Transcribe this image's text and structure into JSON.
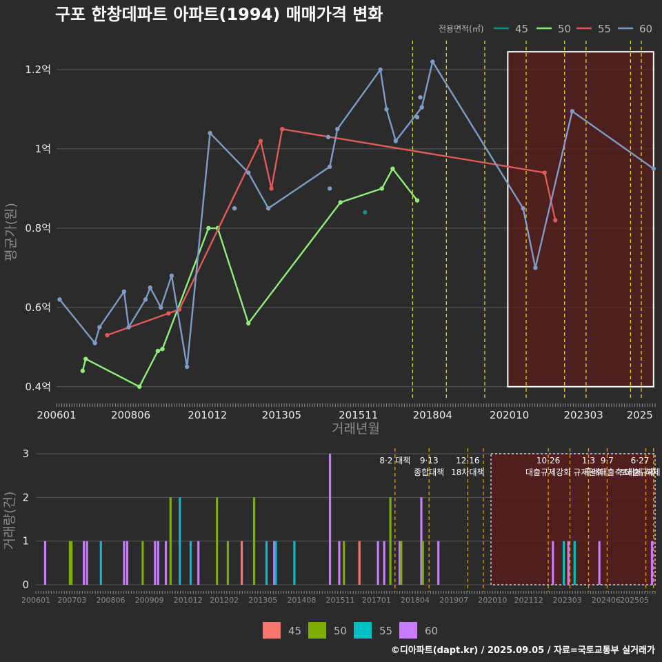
{
  "title": "구포 한창데파트 아파트(1994) 매매가격 변화",
  "credit": "©디아파트(dapt.kr) / 2025.09.05 / 자료=국토교통부 실거래가",
  "colors": {
    "background": "#2b2b2b",
    "grid": "#5a5a5a",
    "s45": "#1f8a8a",
    "s50": "#90ee7a",
    "s55": "#e05a5a",
    "s60": "#7f9cc6",
    "vline": "#e8d800",
    "vline_bottom": "#e6a100",
    "box_fill": "#5a1c1c",
    "b45": "#f8766d",
    "b50": "#7cae00",
    "b55": "#00bfc4",
    "b60": "#c77cff"
  },
  "chart_data": [
    {
      "type": "line",
      "title": "구포 한창데파트 아파트(1994) 매매가격 변화",
      "xlabel": "거래년월",
      "ylabel": "평균가(원)",
      "x_ticks": [
        "200601",
        "200806",
        "201012",
        "201305",
        "201511",
        "201804",
        "202010",
        "202303",
        "2025"
      ],
      "y_ticks": [
        {
          "value": 0.4,
          "label": "0.4억"
        },
        {
          "value": 0.6,
          "label": "0.6억"
        },
        {
          "value": 0.8,
          "label": "0.8억"
        },
        {
          "value": 1.0,
          "label": "1억"
        },
        {
          "value": 1.2,
          "label": "1.2억"
        }
      ],
      "ylim": [
        0.37,
        1.28
      ],
      "xlim": [
        2006.0,
        2025.5
      ],
      "grid": true,
      "legend": {
        "title": "전용면적(㎡)",
        "position": "top-right",
        "items": [
          "45",
          "50",
          "55",
          "60"
        ]
      },
      "series": [
        {
          "name": "45",
          "color_key": "s45",
          "line": false,
          "points": [
            [
              2016.05,
              0.84
            ]
          ]
        },
        {
          "name": "50",
          "color_key": "s50",
          "line": true,
          "points": [
            [
              2006.85,
              0.44
            ],
            [
              2006.95,
              0.47
            ],
            [
              2008.7,
              0.4
            ],
            [
              2009.3,
              0.49
            ],
            [
              2009.45,
              0.495
            ],
            [
              2010.95,
              0.8
            ],
            [
              2011.25,
              0.8
            ],
            [
              2012.25,
              0.56
            ],
            [
              2015.25,
              0.865
            ],
            [
              2016.6,
              0.9
            ],
            [
              2016.95,
              0.95
            ],
            [
              2017.75,
              0.87
            ]
          ]
        },
        {
          "name": "55",
          "color_key": "s55",
          "line": true,
          "points": [
            [
              2007.65,
              0.53
            ],
            [
              2009.65,
              0.585
            ],
            [
              2010.0,
              0.595
            ],
            [
              2012.65,
              1.02
            ],
            [
              2013.0,
              0.9
            ],
            [
              2013.35,
              1.05
            ],
            [
              2021.9,
              0.94
            ],
            [
              2022.25,
              0.82
            ]
          ]
        },
        {
          "name": "60",
          "color_key": "s60",
          "line": true,
          "points": [
            [
              2006.1,
              0.62
            ],
            [
              2007.25,
              0.51
            ],
            [
              2007.4,
              0.55
            ],
            [
              2008.2,
              0.64
            ],
            [
              2008.35,
              0.55
            ],
            [
              2008.9,
              0.62
            ],
            [
              2009.05,
              0.65
            ],
            [
              2009.4,
              0.6
            ],
            [
              2009.75,
              0.68
            ],
            [
              2010.25,
              0.45
            ],
            [
              2011.0,
              1.04
            ],
            [
              2012.25,
              0.94
            ],
            [
              2012.9,
              0.85
            ],
            [
              2014.9,
              0.955
            ],
            [
              2015.15,
              1.05
            ],
            [
              2016.55,
              1.2
            ],
            [
              2016.75,
              1.1
            ],
            [
              2017.05,
              1.02
            ],
            [
              2017.9,
              1.105
            ],
            [
              2018.25,
              1.22
            ],
            [
              2021.2,
              0.85
            ],
            [
              2021.6,
              0.7
            ],
            [
              2022.8,
              1.095
            ],
            [
              2025.45,
              0.95
            ]
          ]
        },
        {
          "name": "60",
          "color_key": "s60",
          "line": false,
          "points": [
            [
              2011.8,
              0.85
            ],
            [
              2014.85,
              1.03
            ],
            [
              2014.9,
              0.9
            ],
            [
              2017.75,
              1.08
            ],
            [
              2017.85,
              1.13
            ]
          ]
        }
      ],
      "policy_lines": [
        2017.6,
        2018.7,
        2019.95,
        2021.3,
        2022.55,
        2023.25,
        2024.7,
        2025.05
      ],
      "highlight_box": [
        2020.7,
        2025.45,
        0.4,
        1.245
      ]
    },
    {
      "type": "bar",
      "ylabel": "거래량(건)",
      "x_ticks": [
        "200601",
        "200703",
        "200806",
        "200909",
        "201012",
        "201202",
        "201305",
        "201408",
        "201511",
        "201701",
        "201804",
        "201907",
        "202010",
        "202112",
        "202303",
        "202406",
        "202505"
      ],
      "y_ticks": [
        0,
        1,
        2,
        3
      ],
      "ylim": [
        0,
        3
      ],
      "legend": {
        "position": "bottom",
        "items": [
          "45",
          "50",
          "55",
          "60"
        ]
      },
      "bars": [
        {
          "x": 2006.3,
          "series": "60",
          "value": 1
        },
        {
          "x": 2007.1,
          "series": "50",
          "value": 1
        },
        {
          "x": 2007.15,
          "series": "50",
          "value": 1
        },
        {
          "x": 2007.55,
          "series": "60",
          "value": 1
        },
        {
          "x": 2007.65,
          "series": "60",
          "value": 1
        },
        {
          "x": 2008.1,
          "series": "55",
          "value": 1
        },
        {
          "x": 2008.85,
          "series": "60",
          "value": 1
        },
        {
          "x": 2008.95,
          "series": "60",
          "value": 1
        },
        {
          "x": 2009.45,
          "series": "50",
          "value": 1
        },
        {
          "x": 2009.85,
          "series": "60",
          "value": 1
        },
        {
          "x": 2009.95,
          "series": "60",
          "value": 1
        },
        {
          "x": 2010.2,
          "series": "60",
          "value": 1
        },
        {
          "x": 2010.35,
          "series": "50",
          "value": 2
        },
        {
          "x": 2010.65,
          "series": "55",
          "value": 2
        },
        {
          "x": 2011.0,
          "series": "55",
          "value": 1
        },
        {
          "x": 2011.25,
          "series": "60",
          "value": 1
        },
        {
          "x": 2011.85,
          "series": "50",
          "value": 2
        },
        {
          "x": 2012.2,
          "series": "50",
          "value": 1
        },
        {
          "x": 2012.65,
          "series": "45",
          "value": 1
        },
        {
          "x": 2013.05,
          "series": "50",
          "value": 2
        },
        {
          "x": 2013.45,
          "series": "55",
          "value": 1
        },
        {
          "x": 2013.7,
          "series": "60",
          "value": 1
        },
        {
          "x": 2013.75,
          "series": "55",
          "value": 1
        },
        {
          "x": 2014.35,
          "series": "55",
          "value": 1
        },
        {
          "x": 2015.5,
          "series": "60",
          "value": 3
        },
        {
          "x": 2015.8,
          "series": "60",
          "value": 1
        },
        {
          "x": 2015.95,
          "series": "50",
          "value": 1
        },
        {
          "x": 2016.45,
          "series": "45",
          "value": 1
        },
        {
          "x": 2017.05,
          "series": "60",
          "value": 1
        },
        {
          "x": 2017.25,
          "series": "60",
          "value": 1
        },
        {
          "x": 2017.45,
          "series": "50",
          "value": 2
        },
        {
          "x": 2017.75,
          "series": "60",
          "value": 1
        },
        {
          "x": 2017.8,
          "series": "50",
          "value": 1
        },
        {
          "x": 2018.45,
          "series": "60",
          "value": 2
        },
        {
          "x": 2018.5,
          "series": "50",
          "value": 1
        },
        {
          "x": 2019.0,
          "series": "60",
          "value": 1
        },
        {
          "x": 2022.7,
          "series": "60",
          "value": 1
        },
        {
          "x": 2023.05,
          "series": "55",
          "value": 1
        },
        {
          "x": 2023.2,
          "series": "60",
          "value": 1
        },
        {
          "x": 2023.4,
          "series": "55",
          "value": 1
        },
        {
          "x": 2024.2,
          "series": "60",
          "value": 1
        },
        {
          "x": 2025.9,
          "series": "60",
          "value": 1
        }
      ],
      "policy_lines": [
        2017.6,
        2018.7,
        2019.95,
        2020.45,
        2022.55,
        2023.25,
        2023.85,
        2024.45,
        2025.7,
        2025.95
      ],
      "highlight_box": [
        2020.7,
        2026.0,
        0,
        3
      ],
      "annotations": [
        {
          "x": 2017.6,
          "lines": [
            "8·2 대책"
          ]
        },
        {
          "x": 2018.7,
          "lines": [
            "9·13",
            "종합대책"
          ]
        },
        {
          "x": 2019.95,
          "lines": [
            "12·16",
            "18차대책"
          ]
        },
        {
          "x": 2022.55,
          "lines": [
            "10·26",
            "대출규제강화"
          ]
        },
        {
          "x": 2023.85,
          "lines": [
            "1·3",
            "규제완화"
          ]
        },
        {
          "x": 2024.45,
          "lines": [
            "9·7",
            "특례대출축소"
          ]
        },
        {
          "x": 2025.7,
          "lines": [
            "6·27",
            "대출규제"
          ]
        },
        {
          "x": 2025.95,
          "lines": [
            "",
            "토허제 해제"
          ]
        }
      ]
    }
  ]
}
